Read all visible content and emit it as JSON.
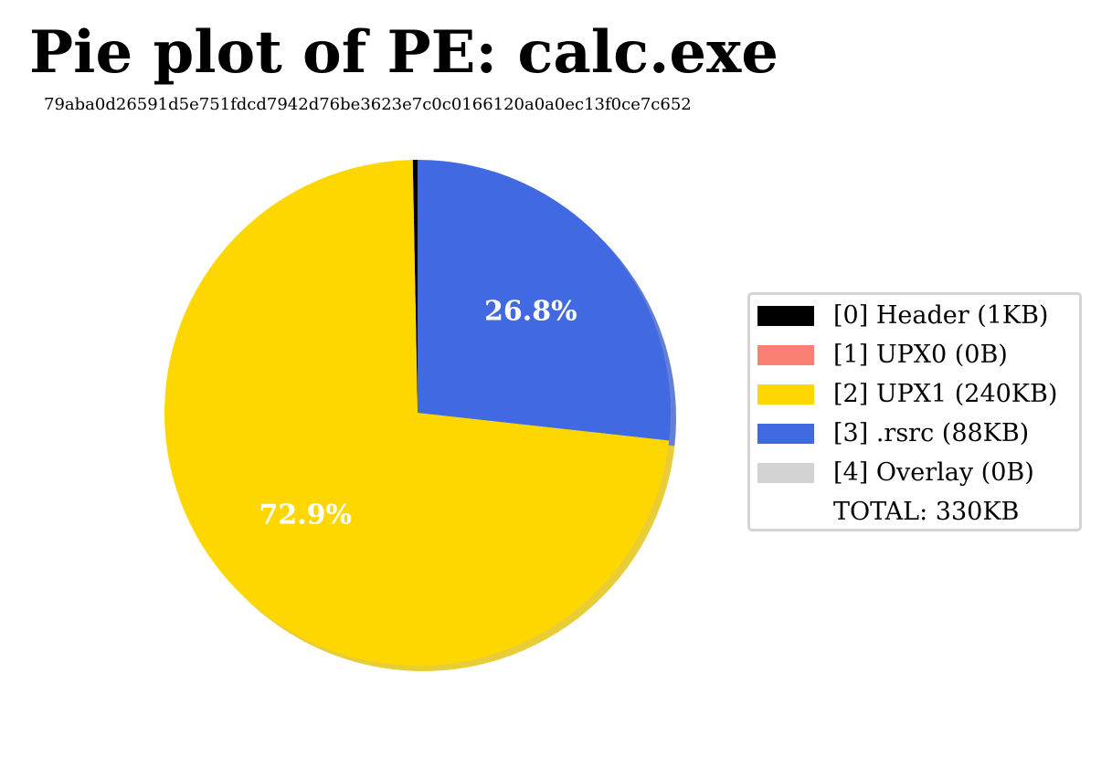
{
  "chart_data": {
    "type": "pie",
    "title": "Pie plot of PE: calc.exe",
    "subtitle": "79aba0d26591d5e751fdcd7942d76be3623e7c0c0166120a0a0ec13f0ce7c652",
    "slices": [
      {
        "label": "[0] Header (1KB)",
        "value": 1,
        "color": "#000000",
        "pct_label": ""
      },
      {
        "label": "[1] UPX0 (0B)",
        "value": 0,
        "color": "#fa8072",
        "pct_label": ""
      },
      {
        "label": "[2] UPX1 (240KB)",
        "value": 240,
        "color": "#ffd700",
        "pct_label": "72.9%"
      },
      {
        "label": "[3] .rsrc (88KB)",
        "value": 88,
        "color": "#4169e1",
        "pct_label": "26.8%"
      },
      {
        "label": "[4] Overlay (0B)",
        "value": 0,
        "color": "#d3d3d3",
        "pct_label": ""
      }
    ],
    "total_label": "TOTAL: 330KB",
    "start_angle": 90,
    "direction": "counterclockwise",
    "shadow": true,
    "legend_position": "right"
  }
}
